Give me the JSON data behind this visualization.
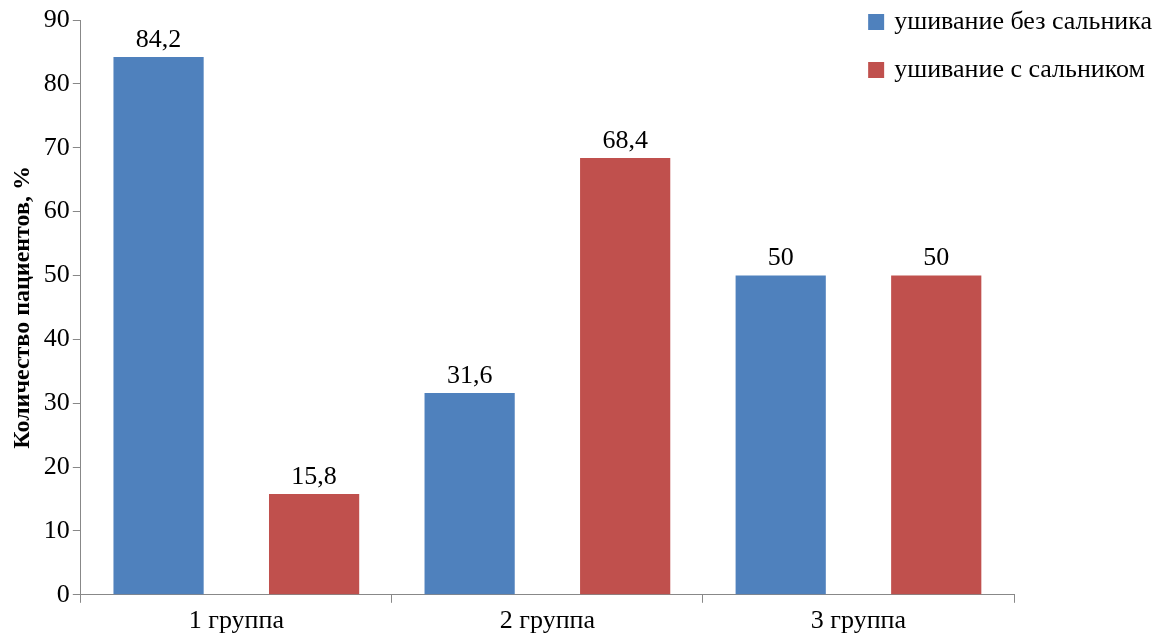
{
  "chart_data": {
    "type": "bar",
    "ylabel": "Количество пациентов, %",
    "categories": [
      "1 группа",
      "2 группа",
      "3 группа"
    ],
    "series": [
      {
        "name": "ушивание без сальника",
        "color": "#4f81bd",
        "values": [
          84.2,
          31.6,
          50
        ],
        "value_labels": [
          "84,2",
          "31,6",
          "50"
        ]
      },
      {
        "name": "ушивание с сальником",
        "color": "#c0504d",
        "values": [
          15.8,
          68.4,
          50
        ],
        "value_labels": [
          "15,8",
          "68,4",
          "50"
        ]
      }
    ],
    "ylim": [
      0,
      90
    ],
    "yticks": [
      0,
      10,
      20,
      30,
      40,
      50,
      60,
      70,
      80,
      90
    ],
    "grid": false,
    "legend": "top right"
  }
}
